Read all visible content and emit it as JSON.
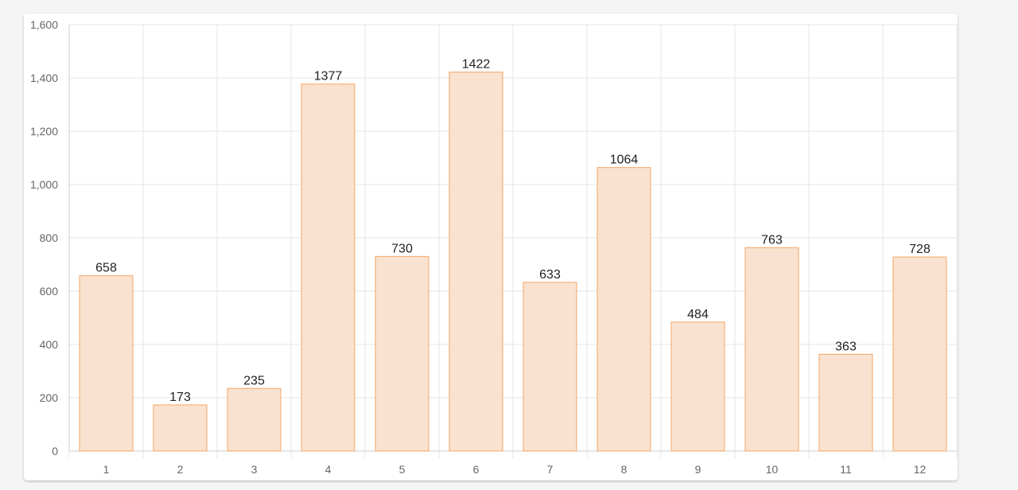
{
  "chart_data": {
    "type": "bar",
    "categories": [
      "1",
      "2",
      "3",
      "4",
      "5",
      "6",
      "7",
      "8",
      "9",
      "10",
      "11",
      "12"
    ],
    "series": [
      {
        "values": [
          658,
          173,
          235,
          1377,
          730,
          1422,
          633,
          1064,
          484,
          763,
          363,
          728
        ]
      }
    ],
    "data_labels": [
      "658",
      "173",
      "235",
      "1377",
      "730",
      "1422",
      "633",
      "1064",
      "484",
      "763",
      "363",
      "728"
    ],
    "y_ticks": [
      "0",
      "200",
      "400",
      "600",
      "800",
      "1,000",
      "1,200",
      "1,400",
      "1,600"
    ],
    "ylim": [
      0,
      1600
    ],
    "title": "",
    "xlabel": "",
    "ylabel": "",
    "grid": true,
    "legend": "none",
    "colors": {
      "bar_fill": "#f9e2cf",
      "bar_stroke": "#f4b27a",
      "grid": "#e6e6e6",
      "axis": "#cccccc",
      "tick_text": "#666666",
      "label_text": "#222222"
    }
  }
}
